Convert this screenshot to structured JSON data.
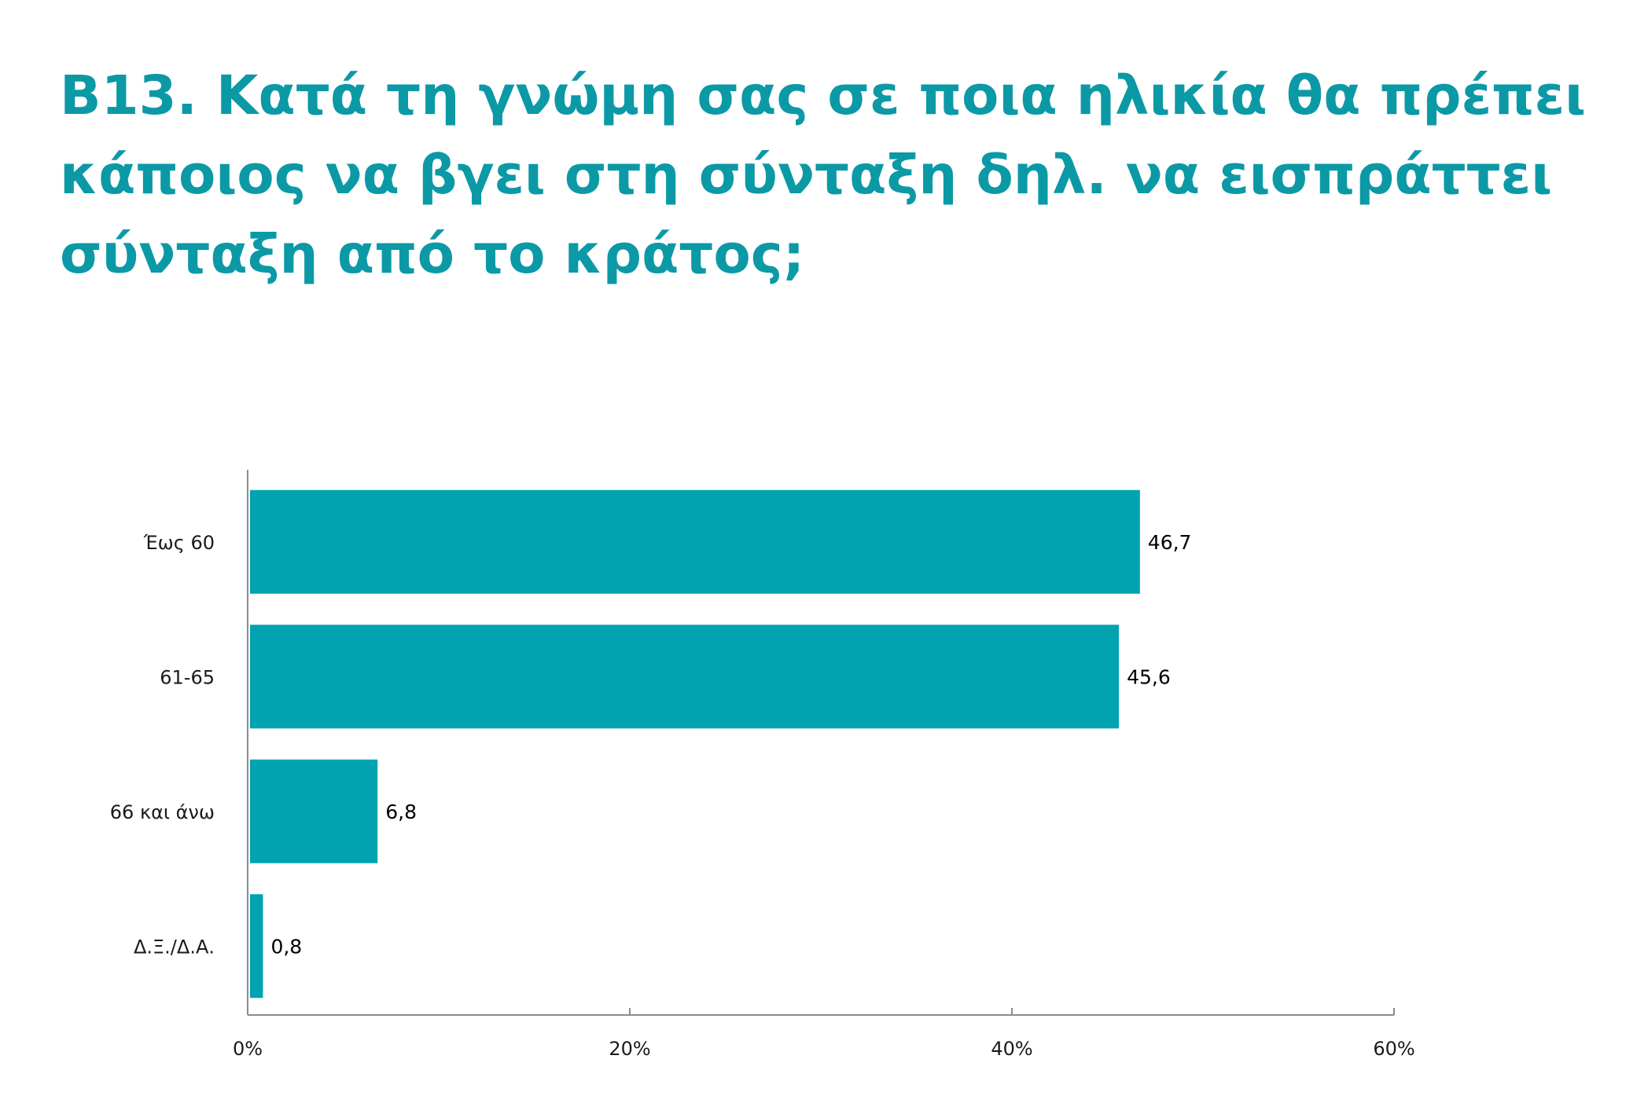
{
  "title": "B13. Κατά τη γνώμη σας σε ποια ηλικία θα πρέπει κάποιος να βγει στη σύνταξη δηλ. να εισπράττει σύνταξη από το κράτος;",
  "colors": {
    "title": "#0c99a6",
    "bar": "#02a3b0",
    "axis": "#8c8c8c"
  },
  "chart_data": {
    "type": "bar",
    "orientation": "horizontal",
    "categories": [
      "Έως 60",
      "61-65",
      "66 και άνω",
      "Δ.Ξ./Δ.Α."
    ],
    "values": [
      46.7,
      45.6,
      6.8,
      0.8
    ],
    "value_labels": [
      "46,7",
      "45,6",
      "6,8",
      "0,8"
    ],
    "xlim": [
      0,
      60
    ],
    "xticks": [
      0,
      20,
      40,
      60
    ],
    "xtick_labels": [
      "0%",
      "20%",
      "40%",
      "60%"
    ],
    "grid": false,
    "legend": "none"
  }
}
